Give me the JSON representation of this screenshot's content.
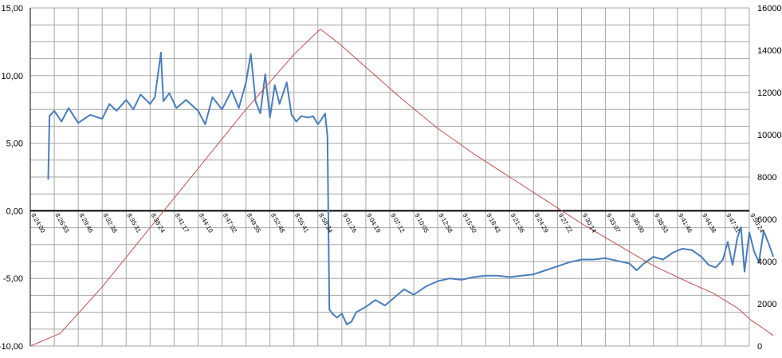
{
  "chart_data": {
    "type": "line",
    "x_ticks": [
      "8:24:00",
      "8:26:53",
      "8:29:46",
      "8:32:38",
      "8:35:31",
      "8:38:24",
      "8:41:17",
      "8:44:10",
      "8:47:02",
      "8:49:55",
      "8:52:48",
      "8:55:41",
      "8:58:34",
      "9:01:26",
      "9:04:19",
      "9:07:12",
      "9:10:05",
      "9:12:58",
      "9:15:50",
      "9:18:43",
      "9:21:36",
      "9:24:29",
      "9:27:22",
      "9:30:14",
      "9:33:07",
      "9:36:00",
      "9:38:53",
      "9:41:46",
      "9:44:38",
      "9:47:31",
      "9:50:24"
    ],
    "y_left": {
      "min": -10,
      "max": 15,
      "ticks": [
        -10,
        -5,
        0,
        5,
        10,
        15
      ],
      "tick_labels": [
        "-10,00",
        "-5,00",
        "0,00",
        "5,00",
        "10,00",
        "15,00"
      ]
    },
    "y_right": {
      "min": 0,
      "max": 16000,
      "ticks": [
        0,
        2000,
        4000,
        6000,
        8000,
        10000,
        12000,
        14000,
        16000
      ],
      "tick_labels": [
        "0",
        "2000",
        "4000",
        "6000",
        "8000",
        "10000",
        "12000",
        "14000",
        "16000"
      ]
    },
    "grid": true,
    "series": [
      {
        "axis": "left",
        "color": "#4a7ebb",
        "points": [
          [
            0.75,
            2.3
          ],
          [
            0.8,
            7.0
          ],
          [
            1.0,
            7.4
          ],
          [
            1.3,
            6.6
          ],
          [
            1.6,
            7.6
          ],
          [
            2.0,
            6.5
          ],
          [
            2.5,
            7.1
          ],
          [
            3.0,
            6.8
          ],
          [
            3.3,
            7.9
          ],
          [
            3.6,
            7.4
          ],
          [
            4.0,
            8.2
          ],
          [
            4.3,
            7.5
          ],
          [
            4.6,
            8.6
          ],
          [
            5.0,
            7.9
          ],
          [
            5.2,
            8.4
          ],
          [
            5.45,
            11.7
          ],
          [
            5.55,
            8.1
          ],
          [
            5.8,
            8.7
          ],
          [
            6.1,
            7.6
          ],
          [
            6.5,
            8.2
          ],
          [
            7.0,
            7.4
          ],
          [
            7.3,
            6.4
          ],
          [
            7.6,
            8.4
          ],
          [
            8.0,
            7.5
          ],
          [
            8.4,
            8.9
          ],
          [
            8.7,
            7.6
          ],
          [
            9.0,
            9.5
          ],
          [
            9.2,
            11.6
          ],
          [
            9.4,
            8.1
          ],
          [
            9.6,
            7.2
          ],
          [
            9.8,
            10.1
          ],
          [
            10.0,
            6.9
          ],
          [
            10.2,
            9.3
          ],
          [
            10.4,
            7.9
          ],
          [
            10.7,
            9.5
          ],
          [
            10.9,
            7.1
          ],
          [
            11.1,
            6.6
          ],
          [
            11.3,
            7.0
          ],
          [
            11.6,
            6.9
          ],
          [
            11.8,
            7.0
          ],
          [
            12.0,
            6.4
          ],
          [
            12.2,
            6.9
          ],
          [
            12.3,
            7.2
          ],
          [
            12.4,
            5.5
          ],
          [
            12.48,
            -7.3
          ],
          [
            12.6,
            -7.6
          ],
          [
            12.8,
            -7.9
          ],
          [
            13.0,
            -7.6
          ],
          [
            13.2,
            -8.4
          ],
          [
            13.4,
            -8.2
          ],
          [
            13.6,
            -7.5
          ],
          [
            14.0,
            -7.1
          ],
          [
            14.4,
            -6.6
          ],
          [
            14.8,
            -7.0
          ],
          [
            15.2,
            -6.4
          ],
          [
            15.6,
            -5.8
          ],
          [
            16.0,
            -6.2
          ],
          [
            16.5,
            -5.6
          ],
          [
            17.0,
            -5.2
          ],
          [
            17.5,
            -5.0
          ],
          [
            18.0,
            -5.1
          ],
          [
            18.5,
            -4.9
          ],
          [
            19.0,
            -4.8
          ],
          [
            19.5,
            -4.8
          ],
          [
            20.0,
            -4.9
          ],
          [
            20.5,
            -4.8
          ],
          [
            21.0,
            -4.7
          ],
          [
            21.5,
            -4.4
          ],
          [
            22.0,
            -4.1
          ],
          [
            22.5,
            -3.8
          ],
          [
            23.0,
            -3.6
          ],
          [
            23.5,
            -3.6
          ],
          [
            24.0,
            -3.5
          ],
          [
            24.5,
            -3.7
          ],
          [
            25.0,
            -3.9
          ],
          [
            25.3,
            -4.4
          ],
          [
            25.6,
            -3.9
          ],
          [
            26.0,
            -3.4
          ],
          [
            26.4,
            -3.6
          ],
          [
            26.8,
            -3.1
          ],
          [
            27.2,
            -2.8
          ],
          [
            27.6,
            -2.9
          ],
          [
            28.0,
            -3.4
          ],
          [
            28.3,
            -4.0
          ],
          [
            28.6,
            -4.2
          ],
          [
            28.9,
            -3.6
          ],
          [
            29.1,
            -2.3
          ],
          [
            29.3,
            -4.0
          ],
          [
            29.5,
            -2.0
          ],
          [
            29.65,
            -1.2
          ],
          [
            29.8,
            -4.5
          ],
          [
            30.0,
            -1.6
          ],
          [
            30.2,
            -3.0
          ],
          [
            30.4,
            -3.8
          ],
          [
            30.6,
            -1.5
          ],
          [
            30.8,
            -2.4
          ],
          [
            31.0,
            -3.4
          ]
        ]
      },
      {
        "axis": "right",
        "color": "#c0504d",
        "points": [
          [
            0,
            0
          ],
          [
            1.25,
            600
          ],
          [
            3.0,
            2800
          ],
          [
            5.0,
            5600
          ],
          [
            7.0,
            8400
          ],
          [
            9.0,
            11200
          ],
          [
            11.0,
            13800
          ],
          [
            12.1,
            15000
          ],
          [
            12.9,
            14300
          ],
          [
            14.0,
            13200
          ],
          [
            15.5,
            11700
          ],
          [
            17.0,
            10300
          ],
          [
            18.5,
            9100
          ],
          [
            20.0,
            8000
          ],
          [
            21.5,
            6900
          ],
          [
            23.0,
            5800
          ],
          [
            24.5,
            4800
          ],
          [
            26.0,
            3800
          ],
          [
            27.5,
            3000
          ],
          [
            28.5,
            2500
          ],
          [
            29.5,
            1800
          ],
          [
            30.1,
            1200
          ],
          [
            30.5,
            900
          ],
          [
            31.0,
            500
          ]
        ]
      }
    ]
  }
}
